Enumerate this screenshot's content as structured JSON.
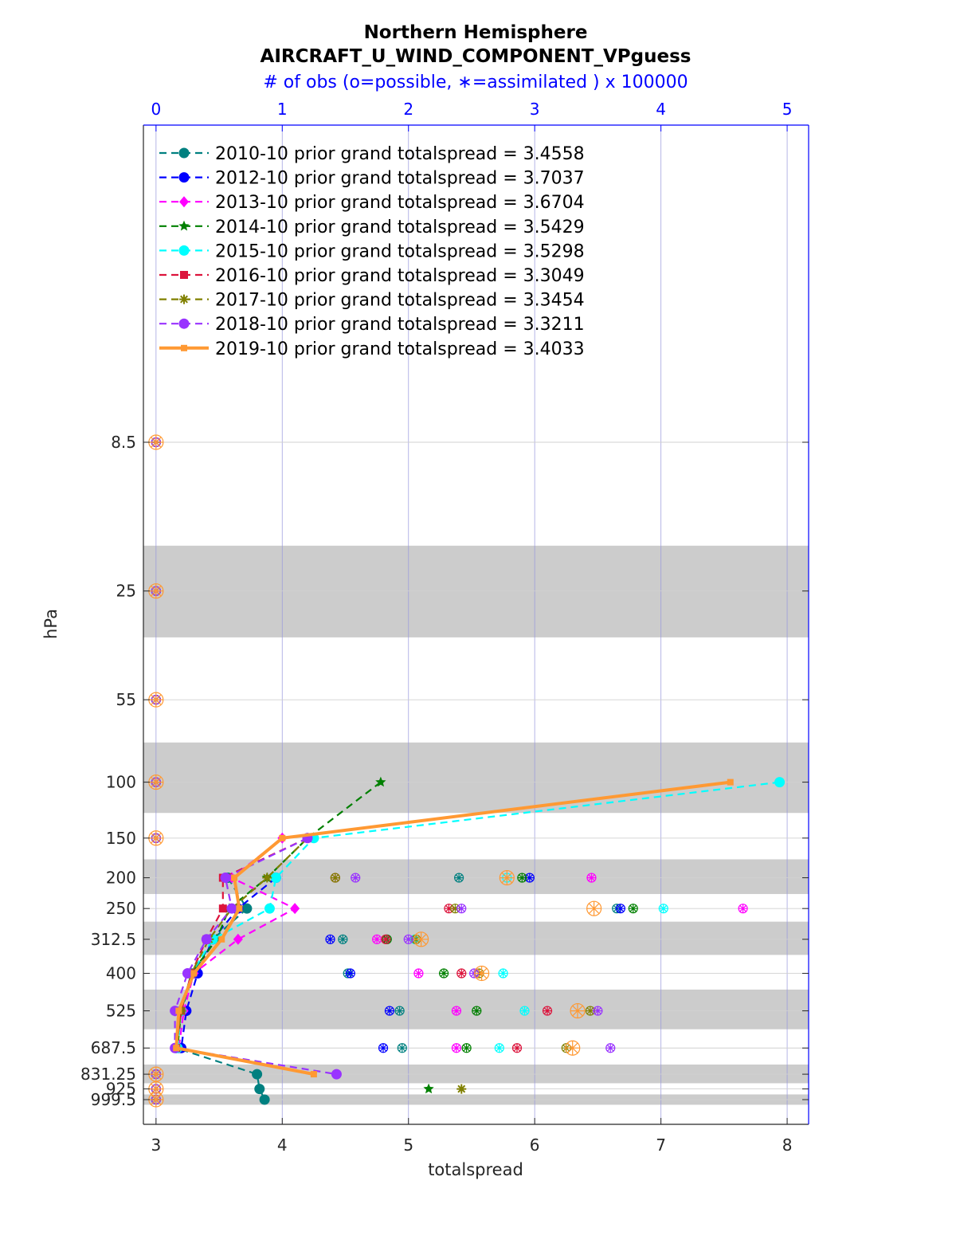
{
  "chart_data": {
    "type": "line",
    "title": "Northern Hemisphere",
    "subtitle": "AIRCRAFT_U_WIND_COMPONENT_VPguess",
    "top_axis_label": "# of obs (o=possible, ∗=assimilated ) x 100000",
    "xlabel": "totalspread",
    "ylabel": "hPa",
    "xlim": [
      2.9,
      8.17
    ],
    "xticks": [
      "3",
      "4",
      "5",
      "6",
      "7",
      "8"
    ],
    "top_xlim": [
      -0.1,
      5.17
    ],
    "top_xticks": [
      "0",
      "1",
      "2",
      "3",
      "4",
      "5"
    ],
    "levels": [
      8.5,
      25,
      55,
      100,
      150,
      200,
      250,
      312.5,
      400,
      525,
      687.5,
      831.25,
      925,
      999.5
    ],
    "level_labels": [
      "8.5",
      "25",
      "55",
      "100",
      "150",
      "200",
      "250",
      "312.5",
      "400",
      "525",
      "687.5",
      "831.25",
      "925",
      "999.5"
    ],
    "shaded_layers": [
      [
        18,
        35
      ],
      [
        75,
        125
      ],
      [
        175,
        225
      ],
      [
        275,
        350
      ],
      [
        450,
        600
      ],
      [
        775,
        887.5
      ],
      [
        962.5,
        1037.5
      ]
    ],
    "series": [
      {
        "name": "2010-10 prior grand totalspread = 3.4558",
        "color": "#008080",
        "dash": true,
        "marker": "circle",
        "values": [
          null,
          null,
          null,
          null,
          null,
          3.57,
          3.72,
          3.45,
          3.3,
          3.2,
          3.16,
          3.8,
          3.82,
          3.86
        ],
        "obs_possible": [
          0,
          0,
          0,
          0,
          0,
          2.4,
          3.65,
          1.48,
          1.52,
          1.93,
          1.95,
          0,
          0,
          0
        ],
        "obs_assimilated": [
          0,
          0,
          0,
          0,
          0,
          2.4,
          3.65,
          1.48,
          1.52,
          1.93,
          1.95,
          0,
          0,
          0
        ]
      },
      {
        "name": "2012-10 prior grand totalspread = 3.7037",
        "color": "#0000ff",
        "dash": true,
        "marker": "circle",
        "values": [
          null,
          null,
          null,
          null,
          null,
          3.95,
          3.65,
          3.45,
          3.33,
          3.24,
          3.2,
          null,
          null,
          null
        ],
        "obs_possible": [
          0,
          0,
          0,
          0,
          0,
          2.96,
          3.68,
          1.38,
          1.54,
          1.85,
          1.8,
          0,
          0,
          0
        ],
        "obs_assimilated": [
          0,
          0,
          0,
          0,
          0,
          2.96,
          3.68,
          1.38,
          1.54,
          1.85,
          1.8,
          0,
          0,
          0
        ]
      },
      {
        "name": "2013-10 prior grand totalspread = 3.6704",
        "color": "#ff00ff",
        "dash": true,
        "marker": "diamond",
        "values": [
          null,
          null,
          null,
          null,
          4.0,
          3.6,
          4.1,
          3.65,
          3.3,
          3.22,
          3.18,
          null,
          null,
          null
        ],
        "obs_possible": [
          0,
          0,
          0,
          0,
          0,
          3.45,
          4.65,
          1.75,
          2.08,
          2.38,
          2.38,
          0,
          0,
          0
        ],
        "obs_assimilated": [
          0,
          0,
          0,
          0,
          0,
          3.45,
          4.65,
          1.75,
          2.08,
          2.38,
          2.38,
          0,
          0,
          0
        ]
      },
      {
        "name": "2014-10 prior grand totalspread = 3.5429",
        "color": "#008000",
        "dash": true,
        "marker": "star",
        "values": [
          null,
          null,
          null,
          4.78,
          4.2,
          3.88,
          3.58,
          3.48,
          3.28,
          3.2,
          3.17,
          null,
          5.16,
          null
        ],
        "obs_possible": [
          0,
          0,
          0,
          0,
          0,
          2.9,
          3.78,
          1.83,
          2.28,
          2.54,
          2.46,
          0,
          0,
          0
        ],
        "obs_assimilated": [
          0,
          0,
          0,
          0,
          0,
          2.9,
          3.78,
          1.83,
          2.28,
          2.54,
          2.46,
          0,
          0,
          0
        ]
      },
      {
        "name": "2015-10 prior grand totalspread = 3.5298",
        "color": "#00ffff",
        "dash": true,
        "marker": "circle",
        "values": [
          null,
          null,
          null,
          7.94,
          4.25,
          3.95,
          3.9,
          3.45,
          3.28,
          3.2,
          3.17,
          null,
          null,
          null
        ],
        "obs_possible": [
          0,
          0,
          0,
          0,
          0,
          2.78,
          4.02,
          2.05,
          2.75,
          2.92,
          2.72,
          0,
          0,
          0
        ],
        "obs_assimilated": [
          0,
          0,
          0,
          0,
          0,
          2.78,
          4.02,
          2.05,
          2.75,
          2.92,
          2.72,
          0,
          0,
          0
        ]
      },
      {
        "name": "2016-10 prior grand totalspread = 3.3049",
        "color": "#dc143c",
        "dash": true,
        "marker": "square",
        "values": [
          null,
          null,
          null,
          null,
          4.2,
          3.53,
          3.53,
          3.4,
          3.28,
          3.2,
          3.16,
          null,
          null,
          null
        ],
        "obs_possible": [
          0,
          0,
          0,
          0,
          0,
          1.42,
          2.32,
          1.82,
          2.42,
          3.1,
          2.86,
          0,
          0,
          0
        ],
        "obs_assimilated": [
          0,
          0,
          0,
          0,
          0,
          1.42,
          2.32,
          1.82,
          2.42,
          3.1,
          2.86,
          0,
          0,
          0
        ]
      },
      {
        "name": "2017-10 prior grand totalspread = 3.3454",
        "color": "#808000",
        "dash": true,
        "marker": "asterisk",
        "values": [
          null,
          null,
          null,
          null,
          4.2,
          3.88,
          3.6,
          3.42,
          3.28,
          3.2,
          3.16,
          null,
          5.42,
          null
        ],
        "obs_possible": [
          0,
          0,
          0,
          0,
          0,
          1.42,
          2.37,
          2.06,
          2.56,
          3.44,
          3.25,
          0,
          0,
          0
        ],
        "obs_assimilated": [
          0,
          0,
          0,
          0,
          0,
          1.42,
          2.37,
          2.06,
          2.56,
          3.44,
          3.25,
          0,
          0,
          0
        ]
      },
      {
        "name": "2018-10 prior grand totalspread = 3.3211",
        "color": "#9933ff",
        "dash": true,
        "marker": "circle",
        "values": [
          null,
          null,
          null,
          null,
          4.2,
          3.55,
          3.6,
          3.4,
          3.25,
          3.15,
          3.15,
          4.43,
          null,
          null
        ],
        "obs_possible": [
          0,
          0,
          0,
          0,
          0,
          1.58,
          2.42,
          2.0,
          2.52,
          3.5,
          3.6,
          0,
          0,
          0
        ],
        "obs_assimilated": [
          0,
          0,
          0,
          0,
          0,
          1.58,
          2.42,
          2.0,
          2.52,
          3.5,
          3.6,
          0,
          0,
          0
        ]
      },
      {
        "name": "2019-10 prior grand totalspread = 3.4033",
        "color": "#ff9933",
        "dash": false,
        "marker": "square",
        "values": [
          null,
          null,
          null,
          7.55,
          4.0,
          3.62,
          3.66,
          3.52,
          3.3,
          3.18,
          3.16,
          4.25,
          null,
          null
        ],
        "obs_possible": [
          0,
          0,
          0,
          0,
          0,
          2.78,
          3.47,
          2.1,
          2.58,
          3.34,
          3.3,
          0,
          0,
          0
        ],
        "obs_assimilated": [
          0,
          0,
          0,
          0,
          0,
          2.78,
          3.47,
          2.1,
          2.58,
          3.34,
          3.3,
          0,
          0,
          0
        ]
      }
    ]
  }
}
